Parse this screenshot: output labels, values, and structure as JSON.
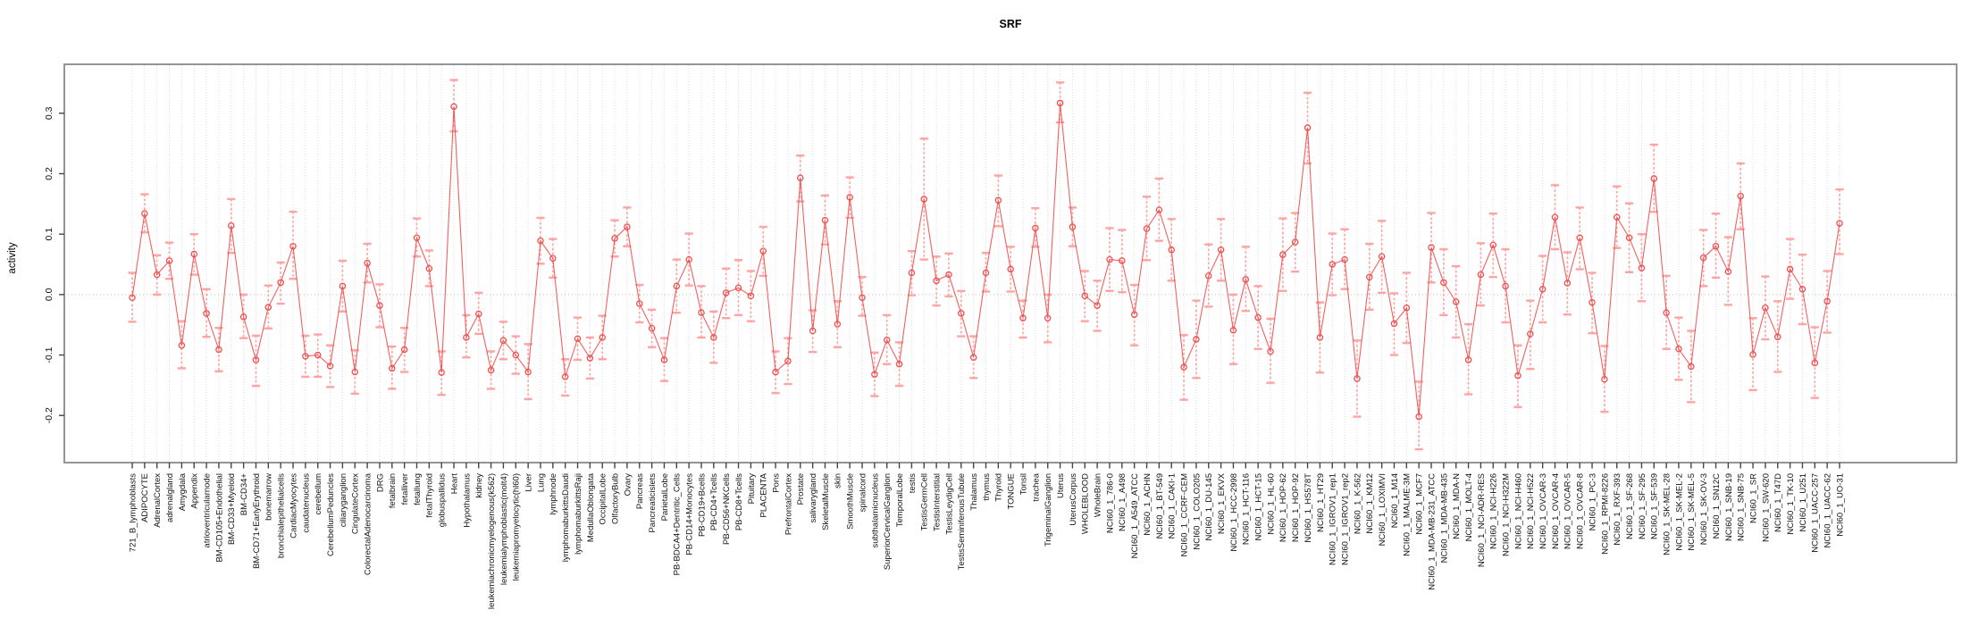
{
  "page": {
    "title": "SRF"
  },
  "chart_data": {
    "type": "line",
    "title": "SRF",
    "xlabel": "",
    "ylabel": "activity",
    "ylim": [
      -0.278,
      0.381
    ],
    "yticks": [
      -0.2,
      -0.1,
      0.0,
      0.1,
      0.2,
      0.3
    ],
    "grid": "vertical dotted gridline per category; horizontal dotted line at 0",
    "legend_position": "none",
    "marker": "open-circle",
    "series_color": "#f04f4f",
    "errorbar_color": "#ffa3a3",
    "box_color": "#888888",
    "gridline_color": "#dcdcdc",
    "categories": [
      "721_B_lymphoblasts",
      "ADIPOCYTE",
      "AdrenalCortex",
      "adrenalgland",
      "Amygdala",
      "Appendix",
      "atrioventricularnode",
      "BM-CD105+Endothelial",
      "BM-CD33+Myeloid",
      "BM-CD34+",
      "BM-CD71+EarlyErythroid",
      "bonemarrow",
      "bronchialepithelialcells",
      "CardiacMyocytes",
      "caudatenucleus",
      "cerebellum",
      "CerebellumPeduncles",
      "ciliaryganglion",
      "CingulateCortex",
      "ColorectalAdenocarcinoma",
      "DRG",
      "fetalbrain",
      "fetalliver",
      "fetallung",
      "fetalThyroid",
      "globuspallidus",
      "Heart",
      "Hypothalamus",
      "kidney",
      "leukemiachronicmyelogenous(k562)",
      "leukemialymphoblastic(molt4)",
      "leukemiapromyelocytic(hl60)",
      "Liver",
      "Lung",
      "lymphnode",
      "lymphomaburkittsDaudi",
      "lymphomaburkittsRaji",
      "MedullaOblongata",
      "OccipitalLobe",
      "OlfactoryBulb",
      "Ovary",
      "Pancreas",
      "Pancreaticislets",
      "ParietalLobe",
      "PB-BDCA4+Dentritic_Cells",
      "PB-CD14+Monocytes",
      "PB-CD19+Bcells",
      "PB-CD4+Tcells",
      "PB-CD56+NKCells",
      "PB-CD8+Tcells",
      "Pituitary",
      "PLACENTA",
      "Pons",
      "PrefrontalCortex",
      "Prostate",
      "salivarygland",
      "SkeletalMuscle",
      "skin",
      "SmoothMuscle",
      "spinalcord",
      "subthalamicnucleus",
      "SuperiorCervicalGanglion",
      "TemporalLobe",
      "testis",
      "TestisGermCell",
      "TestisInterstitial",
      "TestisLeydigCell",
      "TestisSeminiferousTubule",
      "Thalamus",
      "thymus",
      "Thyroid",
      "TONGUE",
      "Tonsil",
      "trachea",
      "TrigeminalGanglion",
      "Uterus",
      "UterusCorpus",
      "WHOLEBLOOD",
      "WholeBrain",
      "NCI60_1_786-0",
      "NCI60_1_A498",
      "NCI60_1_A549_ATCC",
      "NCI60_1_ACHN",
      "NCI60_1_BT-549",
      "NCI60_1_CAKI-1",
      "NCI60_1_CCRF-CEM",
      "NCI60_1_COLO205",
      "NCI60_1_DU-145",
      "NCI60_1_EKVX",
      "NCI60_1_HCC-2998",
      "NCI60_1_HCT-116",
      "NCI60_1_HCT-15",
      "NCI60_1_HL-60",
      "NCI60_1_HOP-62",
      "NCI60_1_HOP-92",
      "NCI60_1_HS578T",
      "NCI60_1_HT29",
      "NCI60_1_IGROV1_rep1",
      "NCI60_1_IGROV1_rep2",
      "NCI60_1_K-562",
      "NCI60_1_KM12",
      "NCI60_1_LOXIMVI",
      "NCI60_1_M14",
      "NCI60_1_MALME-3M",
      "NCI60_1_MCF7",
      "NCI60_1_MDA-MB-231_ATCC",
      "NCI60_1_MDA-MB-435",
      "NCI60_1_MDA-N",
      "NCI60_1_MOLT-4",
      "NCI60_1_NCI-ADR-RES",
      "NCI60_1_NCI-H226",
      "NCI60_1_NCI-H322M",
      "NCI60_1_NCI-H460",
      "NCI60_1_NCI-H522",
      "NCI60_1_OVCAR-3",
      "NCI60_1_OVCAR-4",
      "NCI60_1_OVCAR-5",
      "NCI60_1_OVCAR-8",
      "NCI60_1_PC-3",
      "NCI60_1_RPMI-8226",
      "NCI60_1_RXF-393",
      "NCI60_1_SF-268",
      "NCI60_1_SF-295",
      "NCI60_1_SF-539",
      "NCI60_1_SK-MEL-28",
      "NCI60_1_SK-MEL-2",
      "NCI60_1_SK-MEL-5",
      "NCI60_1_SK-OV-3",
      "NCI60_1_SN12C",
      "NCI60_1_SNB-19",
      "NCI60_1_SNB-75",
      "NCI60_1_SR",
      "NCI60_1_SW-620",
      "NCI60_1_T47D",
      "NCI60_1_TK-10",
      "NCI60_1_U251",
      "NCI60_1_UACC-257",
      "NCI60_1_UACC-62",
      "NCI60_1_UO-31"
    ],
    "values": [
      -0.005,
      0.134,
      0.033,
      0.056,
      -0.084,
      0.067,
      -0.031,
      -0.091,
      0.114,
      -0.037,
      -0.108,
      -0.021,
      0.02,
      0.08,
      -0.102,
      -0.1,
      -0.118,
      0.014,
      -0.128,
      0.052,
      -0.018,
      -0.122,
      -0.091,
      0.094,
      0.043,
      -0.129,
      0.311,
      -0.071,
      -0.032,
      -0.125,
      -0.076,
      -0.1,
      -0.128,
      0.089,
      0.06,
      -0.136,
      -0.073,
      -0.105,
      -0.071,
      0.093,
      0.112,
      -0.015,
      -0.056,
      -0.108,
      0.014,
      0.058,
      -0.03,
      -0.071,
      0.003,
      0.011,
      -0.002,
      0.072,
      -0.128,
      -0.11,
      0.193,
      -0.06,
      0.123,
      -0.049,
      0.161,
      -0.005,
      -0.132,
      -0.075,
      -0.115,
      0.036,
      0.158,
      0.023,
      0.033,
      -0.031,
      -0.104,
      0.036,
      0.156,
      0.042,
      -0.039,
      0.11,
      -0.039,
      0.317,
      0.112,
      -0.002,
      -0.018,
      0.058,
      0.056,
      -0.033,
      0.109,
      0.14,
      0.074,
      -0.12,
      -0.074,
      0.031,
      0.074,
      -0.059,
      0.025,
      -0.038,
      -0.094,
      0.066,
      0.087,
      0.276,
      -0.071,
      0.05,
      0.058,
      -0.139,
      0.029,
      0.063,
      -0.048,
      -0.022,
      -0.202,
      0.078,
      0.02,
      -0.012,
      -0.108,
      0.033,
      0.082,
      0.014,
      -0.134,
      -0.065,
      0.009,
      0.128,
      0.019,
      0.094,
      -0.013,
      -0.14,
      0.128,
      0.094,
      0.044,
      0.192,
      -0.03,
      -0.09,
      -0.119,
      0.061,
      0.08,
      0.038,
      0.163,
      -0.099,
      -0.022,
      -0.07,
      0.042,
      0.009,
      -0.113,
      -0.011,
      0.118
    ],
    "err_low": [
      -0.045,
      0.103,
      0.0,
      0.026,
      -0.122,
      0.033,
      -0.07,
      -0.127,
      0.069,
      -0.072,
      -0.151,
      -0.056,
      -0.015,
      0.026,
      -0.136,
      -0.136,
      -0.153,
      -0.028,
      -0.164,
      0.02,
      -0.054,
      -0.156,
      -0.128,
      0.063,
      0.014,
      -0.166,
      0.27,
      -0.104,
      -0.065,
      -0.156,
      -0.107,
      -0.131,
      -0.173,
      0.051,
      0.028,
      -0.167,
      -0.108,
      -0.139,
      -0.107,
      0.063,
      0.08,
      -0.046,
      -0.087,
      -0.143,
      -0.03,
      0.015,
      -0.071,
      -0.113,
      -0.039,
      -0.034,
      -0.044,
      0.031,
      -0.163,
      -0.148,
      0.154,
      -0.095,
      0.083,
      -0.087,
      0.127,
      -0.035,
      -0.168,
      -0.115,
      -0.151,
      -0.001,
      0.058,
      -0.018,
      -0.003,
      -0.069,
      -0.138,
      0.005,
      0.113,
      0.005,
      -0.071,
      0.079,
      -0.079,
      0.285,
      0.08,
      -0.044,
      -0.06,
      0.006,
      0.004,
      -0.084,
      0.057,
      0.089,
      0.023,
      -0.174,
      -0.138,
      -0.02,
      0.023,
      -0.115,
      -0.027,
      -0.09,
      -0.146,
      0.006,
      0.038,
      0.217,
      -0.129,
      -0.001,
      0.009,
      -0.202,
      -0.025,
      0.003,
      -0.1,
      -0.08,
      -0.256,
      0.02,
      -0.034,
      -0.071,
      -0.165,
      -0.018,
      0.029,
      -0.046,
      -0.186,
      -0.123,
      -0.046,
      0.075,
      -0.033,
      0.042,
      -0.064,
      -0.194,
      0.077,
      0.037,
      -0.011,
      0.137,
      -0.09,
      -0.141,
      -0.178,
      0.014,
      0.028,
      -0.017,
      0.108,
      -0.158,
      -0.074,
      -0.128,
      -0.007,
      -0.049,
      -0.171,
      -0.063,
      0.067
    ],
    "err_high": [
      0.036,
      0.166,
      0.065,
      0.086,
      -0.044,
      0.1,
      0.009,
      -0.055,
      0.158,
      0.0,
      -0.068,
      0.015,
      0.053,
      0.137,
      -0.068,
      -0.066,
      -0.084,
      0.056,
      -0.092,
      0.084,
      0.017,
      -0.086,
      -0.055,
      0.126,
      0.073,
      -0.094,
      0.355,
      -0.034,
      0.003,
      -0.094,
      -0.045,
      -0.069,
      -0.082,
      0.127,
      0.092,
      -0.107,
      -0.038,
      -0.071,
      -0.035,
      0.123,
      0.144,
      0.016,
      -0.025,
      -0.072,
      0.058,
      0.101,
      0.014,
      -0.028,
      0.043,
      0.057,
      0.039,
      0.112,
      -0.094,
      -0.072,
      0.23,
      -0.026,
      0.164,
      -0.011,
      0.194,
      0.029,
      -0.096,
      -0.034,
      -0.079,
      0.072,
      0.258,
      0.063,
      0.068,
      0.006,
      -0.069,
      0.069,
      0.197,
      0.079,
      -0.01,
      0.143,
      0.0,
      0.351,
      0.144,
      0.039,
      0.023,
      0.11,
      0.107,
      0.016,
      0.162,
      0.192,
      0.125,
      -0.067,
      -0.01,
      0.083,
      0.125,
      0.0,
      0.079,
      0.014,
      -0.04,
      0.126,
      0.135,
      0.334,
      -0.013,
      0.101,
      0.108,
      -0.076,
      0.084,
      0.122,
      0.002,
      0.036,
      -0.144,
      0.135,
      0.075,
      0.047,
      -0.049,
      0.085,
      0.134,
      0.075,
      -0.084,
      -0.01,
      0.064,
      0.181,
      0.07,
      0.144,
      0.036,
      -0.085,
      0.179,
      0.151,
      0.1,
      0.248,
      0.031,
      -0.038,
      -0.06,
      0.107,
      0.134,
      0.095,
      0.217,
      -0.039,
      0.03,
      -0.011,
      0.092,
      0.066,
      -0.054,
      0.039,
      0.174
    ]
  }
}
